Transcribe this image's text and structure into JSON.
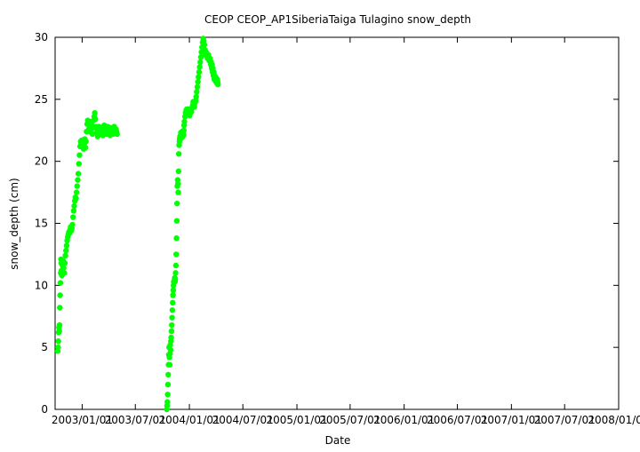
{
  "chart_data": {
    "type": "scatter",
    "title": "CEOP CEOP_AP1SiberiaTaiga Tulagino  snow_depth",
    "xlabel": "Date",
    "ylabel": "snow_depth (cm)",
    "ylim": [
      0,
      30
    ],
    "yticks": [
      0,
      5,
      10,
      15,
      20,
      25,
      30
    ],
    "xlim": [
      "2002/10/01",
      "2008/01/01"
    ],
    "xticks": [
      "2003/01/01",
      "2003/07/01",
      "2004/01/01",
      "2004/07/01",
      "2005/01/01",
      "2005/07/01",
      "2006/01/01",
      "2006/07/01",
      "2007/01/01",
      "2007/07/01",
      "2008/01/01"
    ],
    "marker_color": "#00ff00",
    "grid": false,
    "series": [
      {
        "x": [
          "2002/10/10",
          "2002/10/11",
          "2002/10/12",
          "2002/10/13",
          "2002/10/14",
          "2002/10/15",
          "2002/10/16",
          "2002/10/17",
          "2002/10/18",
          "2002/10/19",
          "2002/10/20",
          "2002/10/21",
          "2002/10/22",
          "2002/10/23",
          "2002/10/24",
          "2002/10/26",
          "2002/10/28",
          "2002/10/30",
          "2002/11/01",
          "2002/11/03",
          "2002/11/05",
          "2002/11/07",
          "2002/11/09",
          "2002/11/11",
          "2002/11/13",
          "2002/11/15",
          "2002/11/17",
          "2002/11/19",
          "2002/11/21",
          "2002/11/23",
          "2002/11/25",
          "2002/11/27",
          "2002/11/29",
          "2002/12/01",
          "2002/12/03",
          "2002/12/05",
          "2002/12/07",
          "2002/12/09",
          "2002/12/11",
          "2002/12/13",
          "2002/12/15",
          "2002/12/17",
          "2002/12/19",
          "2002/12/21",
          "2002/12/23",
          "2002/12/25",
          "2002/12/27",
          "2002/12/29",
          "2002/12/31",
          "2003/01/02",
          "2003/01/04",
          "2003/01/06",
          "2003/01/08",
          "2003/01/10",
          "2003/01/12",
          "2003/01/14",
          "2003/01/16",
          "2003/01/18",
          "2003/01/20",
          "2003/01/22",
          "2003/01/24",
          "2003/01/26",
          "2003/01/28",
          "2003/01/30",
          "2003/02/01",
          "2003/02/03",
          "2003/02/05",
          "2003/02/07",
          "2003/02/09",
          "2003/02/11",
          "2003/02/13",
          "2003/02/15",
          "2003/02/17",
          "2003/02/19",
          "2003/02/21",
          "2003/02/23",
          "2003/02/25",
          "2003/02/27",
          "2003/03/01",
          "2003/03/03",
          "2003/03/05",
          "2003/03/07",
          "2003/03/09",
          "2003/03/11",
          "2003/03/13",
          "2003/03/15",
          "2003/03/17",
          "2003/03/19",
          "2003/03/21",
          "2003/03/23",
          "2003/03/25",
          "2003/03/27",
          "2003/03/29",
          "2003/03/31",
          "2003/04/02",
          "2003/04/04",
          "2003/04/06",
          "2003/04/08",
          "2003/04/10",
          "2003/04/12",
          "2003/04/14",
          "2003/04/16",
          "2003/04/18",
          "2003/04/20",
          "2003/04/22",
          "2003/04/24",
          "2003/04/26",
          "2003/04/28",
          "2003/04/30"
        ],
        "y": [
          4.7,
          5.0,
          5.5,
          6.2,
          6.6,
          6.3,
          6.8,
          8.2,
          9.2,
          10.2,
          11.0,
          12.1,
          11.8,
          11.2,
          10.8,
          11.6,
          12.0,
          11.4,
          11.0,
          11.8,
          12.4,
          12.8,
          13.2,
          13.6,
          13.9,
          14.1,
          14.3,
          14.2,
          14.5,
          14.7,
          14.4,
          14.6,
          14.9,
          15.5,
          16.0,
          16.4,
          16.8,
          17.1,
          17.0,
          17.5,
          18.0,
          18.5,
          19.0,
          19.8,
          20.5,
          21.2,
          21.6,
          21.4,
          21.7,
          21.5,
          21.2,
          21.0,
          21.4,
          21.8,
          21.1,
          21.6,
          22.4,
          23.0,
          23.3,
          23.1,
          22.6,
          22.8,
          22.4,
          23.2,
          22.6,
          22.9,
          22.2,
          22.7,
          23.3,
          23.6,
          23.9,
          23.4,
          22.8,
          22.3,
          22.6,
          22.0,
          22.4,
          22.8,
          22.5,
          22.3,
          22.6,
          22.2,
          22.4,
          22.7,
          22.1,
          22.5,
          22.9,
          22.3,
          22.6,
          22.4,
          22.2,
          22.5,
          22.8,
          22.3,
          22.6,
          22.4,
          22.1,
          22.5,
          22.7,
          22.3,
          22.6,
          22.2,
          22.4,
          22.8,
          22.5,
          22.3,
          22.6,
          22.4,
          22.2
        ]
      },
      {
        "x": [
          "2003/10/16",
          "2003/10/17",
          "2003/10/18",
          "2003/10/19",
          "2003/10/20",
          "2003/10/21",
          "2003/10/22",
          "2003/10/23",
          "2003/10/24",
          "2003/10/25",
          "2003/10/26",
          "2003/10/27",
          "2003/10/28",
          "2003/10/29",
          "2003/10/30",
          "2003/10/31",
          "2003/11/01",
          "2003/11/02",
          "2003/11/03",
          "2003/11/04",
          "2003/11/05",
          "2003/11/06",
          "2003/11/07",
          "2003/11/08",
          "2003/11/09",
          "2003/11/10",
          "2003/11/11",
          "2003/11/12",
          "2003/11/13",
          "2003/11/14",
          "2003/11/15",
          "2003/11/16",
          "2003/11/17",
          "2003/11/18",
          "2003/11/19",
          "2003/11/20",
          "2003/11/21",
          "2003/11/22",
          "2003/11/23",
          "2003/11/24",
          "2003/11/25",
          "2003/11/26",
          "2003/11/27",
          "2003/11/28",
          "2003/11/29",
          "2003/11/30",
          "2003/12/01",
          "2003/12/02",
          "2003/12/03",
          "2003/12/04",
          "2003/12/05",
          "2003/12/06",
          "2003/12/07",
          "2003/12/08",
          "2003/12/09",
          "2003/12/10",
          "2003/12/11",
          "2003/12/12",
          "2003/12/13",
          "2003/12/14",
          "2003/12/15",
          "2003/12/17",
          "2003/12/19",
          "2003/12/21",
          "2003/12/23",
          "2003/12/25",
          "2003/12/27",
          "2003/12/29",
          "2003/12/31",
          "2004/01/02",
          "2004/01/04",
          "2004/01/06",
          "2004/01/08",
          "2004/01/10",
          "2004/01/12",
          "2004/01/14",
          "2004/01/16",
          "2004/01/18",
          "2004/01/20",
          "2004/01/22",
          "2004/01/24",
          "2004/01/26",
          "2004/01/28",
          "2004/01/30",
          "2004/02/01",
          "2004/02/03",
          "2004/02/05",
          "2004/02/07",
          "2004/02/09",
          "2004/02/11",
          "2004/02/13",
          "2004/02/15",
          "2004/02/17",
          "2004/02/19",
          "2004/02/21",
          "2004/02/23",
          "2004/02/25",
          "2004/02/27",
          "2004/03/01",
          "2004/03/03",
          "2004/03/05",
          "2004/03/07",
          "2004/03/09",
          "2004/03/11",
          "2004/03/13",
          "2004/03/14",
          "2004/03/15",
          "2004/03/16",
          "2004/03/17",
          "2004/03/18",
          "2004/03/19",
          "2004/03/20",
          "2004/03/21",
          "2004/03/22",
          "2004/03/23",
          "2004/03/24",
          "2004/03/25",
          "2004/03/26",
          "2004/03/27",
          "2004/03/28",
          "2004/03/29",
          "2004/03/30",
          "2004/03/31",
          "2004/04/01",
          "2004/04/02",
          "2004/04/03",
          "2004/04/04",
          "2004/04/05",
          "2004/04/06",
          "2004/04/07"
        ],
        "y": [
          0.0,
          0.3,
          0.6,
          1.2,
          2.0,
          2.8,
          3.6,
          4.4,
          5.0,
          4.2,
          3.6,
          4.5,
          5.2,
          4.8,
          5.5,
          5.8,
          6.3,
          6.8,
          7.4,
          8.0,
          8.6,
          9.2,
          9.6,
          10.0,
          10.3,
          10.2,
          10.4,
          10.6,
          10.3,
          10.5,
          11.0,
          11.6,
          12.5,
          13.8,
          15.2,
          16.6,
          18.0,
          18.5,
          18.2,
          17.5,
          19.2,
          20.6,
          21.3,
          21.6,
          21.8,
          22.0,
          21.8,
          22.1,
          22.3,
          22.2,
          21.9,
          22.2,
          22.4,
          22.1,
          22.0,
          22.3,
          22.2,
          22.1,
          22.5,
          22.9,
          23.2,
          23.6,
          23.9,
          24.1,
          24.2,
          24.0,
          23.8,
          24.2,
          24.0,
          23.7,
          23.9,
          24.1,
          24.0,
          24.3,
          24.5,
          24.8,
          24.6,
          24.4,
          24.7,
          24.9,
          25.2,
          25.6,
          26.0,
          26.4,
          26.8,
          27.2,
          27.6,
          28.0,
          28.4,
          28.8,
          29.2,
          29.6,
          29.9,
          29.7,
          29.4,
          29.0,
          28.6,
          28.8,
          28.5,
          28.3,
          28.6,
          28.4,
          28.1,
          28.3,
          28.0,
          27.8,
          28.0,
          27.7,
          27.5,
          27.8,
          27.4,
          27.2,
          27.5,
          27.1,
          26.9,
          27.2,
          26.8,
          26.6,
          26.9,
          26.7,
          26.5,
          26.8,
          26.6,
          26.4,
          26.7,
          26.5,
          26.3,
          26.6,
          26.4,
          26.2
        ]
      }
    ]
  }
}
